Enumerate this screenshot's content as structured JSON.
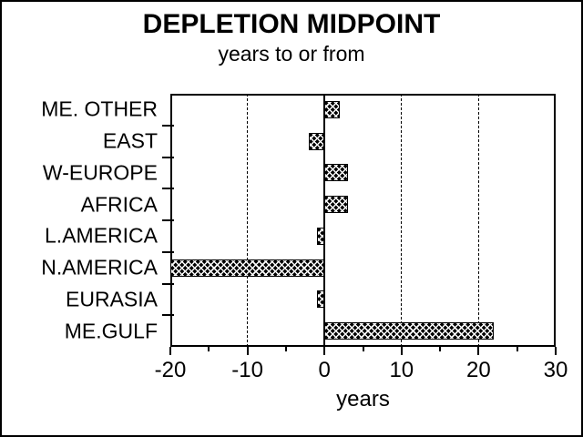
{
  "chart_data": {
    "type": "bar",
    "orientation": "horizontal",
    "title": "DEPLETION MIDPOINT",
    "subtitle": "years to or from",
    "xlabel": "years",
    "categories": [
      "ME. OTHER",
      "EAST",
      "W-EUROPE",
      "AFRICA",
      "L.AMERICA",
      "N.AMERICA",
      "EURASIA",
      "ME.GULF"
    ],
    "values": [
      2,
      -2,
      3,
      3,
      -1,
      -20,
      -1,
      22
    ],
    "xlim": [
      -20,
      30
    ],
    "x_major_ticks": [
      -20,
      -10,
      0,
      10,
      20,
      30
    ],
    "x_minor_ticks": [
      -15,
      -5,
      5,
      15,
      25
    ],
    "dashed_gridlines_at": [
      -10,
      10,
      20
    ],
    "zero_line_at": 0,
    "grid": "vertical-dashed",
    "legend": "none",
    "bar_fill_pattern": "black-crosshatch",
    "colors": {
      "foreground": "#000000",
      "background": "#ffffff"
    }
  }
}
